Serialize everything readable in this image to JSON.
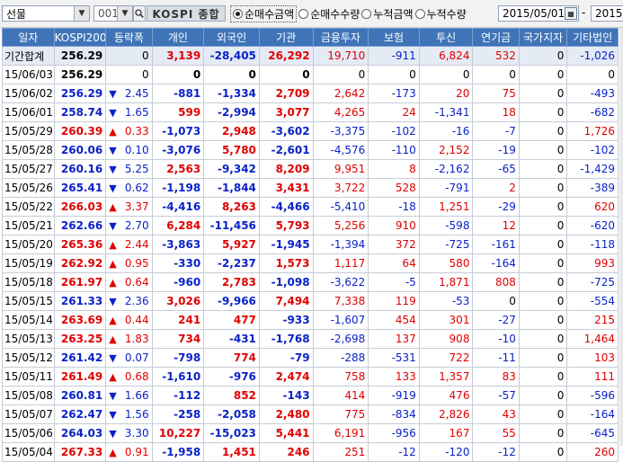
{
  "toolbar": {
    "market_select": "선물",
    "code_value": "001",
    "code_name": "KOSPI 종합",
    "radios": [
      {
        "label": "순매수금액",
        "selected": true
      },
      {
        "label": "순매수수량",
        "selected": false
      },
      {
        "label": "누적금액",
        "selected": false
      },
      {
        "label": "누적수량",
        "selected": false
      }
    ],
    "start_date": "2015/05/01",
    "separator": "-",
    "end_date": "2015/"
  },
  "columns": [
    "일자",
    "KOSPI200",
    "등락폭",
    "개인",
    "외국인",
    "기관",
    "금융투자",
    "보험",
    "투신",
    "연기금",
    "국가지자",
    "기타법인"
  ],
  "rows": [
    {
      "date": "기간합계",
      "kospi": "256.29",
      "dir": "",
      "chg": "0",
      "p": "3,139",
      "f": "-28,405",
      "i": "26,292",
      "fin": "19,710",
      "ins": "-911",
      "inv": "6,824",
      "pen": "532",
      "gov": "0",
      "etc": "-1,026"
    },
    {
      "date": "15/06/03",
      "kospi": "256.29",
      "dir": "",
      "chg": "0",
      "p": "0",
      "f": "0",
      "i": "0",
      "fin": "0",
      "ins": "0",
      "inv": "0",
      "pen": "0",
      "gov": "0",
      "etc": "0"
    },
    {
      "date": "15/06/02",
      "kospi": "256.29",
      "dir": "down",
      "chg": "2.45",
      "p": "-881",
      "f": "-1,334",
      "i": "2,709",
      "fin": "2,642",
      "ins": "-173",
      "inv": "20",
      "pen": "75",
      "gov": "0",
      "etc": "-493"
    },
    {
      "date": "15/06/01",
      "kospi": "258.74",
      "dir": "down",
      "chg": "1.65",
      "p": "599",
      "f": "-2,994",
      "i": "3,077",
      "fin": "4,265",
      "ins": "24",
      "inv": "-1,341",
      "pen": "18",
      "gov": "0",
      "etc": "-682"
    },
    {
      "date": "15/05/29",
      "kospi": "260.39",
      "dir": "up",
      "chg": "0.33",
      "p": "-1,073",
      "f": "2,948",
      "i": "-3,602",
      "fin": "-3,375",
      "ins": "-102",
      "inv": "-16",
      "pen": "-7",
      "gov": "0",
      "etc": "1,726"
    },
    {
      "date": "15/05/28",
      "kospi": "260.06",
      "dir": "down",
      "chg": "0.10",
      "p": "-3,076",
      "f": "5,780",
      "i": "-2,601",
      "fin": "-4,576",
      "ins": "-110",
      "inv": "2,152",
      "pen": "-19",
      "gov": "0",
      "etc": "-102"
    },
    {
      "date": "15/05/27",
      "kospi": "260.16",
      "dir": "down",
      "chg": "5.25",
      "p": "2,563",
      "f": "-9,342",
      "i": "8,209",
      "fin": "9,951",
      "ins": "8",
      "inv": "-2,162",
      "pen": "-65",
      "gov": "0",
      "etc": "-1,429"
    },
    {
      "date": "15/05/26",
      "kospi": "265.41",
      "dir": "down",
      "chg": "0.62",
      "p": "-1,198",
      "f": "-1,844",
      "i": "3,431",
      "fin": "3,722",
      "ins": "528",
      "inv": "-791",
      "pen": "2",
      "gov": "0",
      "etc": "-389"
    },
    {
      "date": "15/05/22",
      "kospi": "266.03",
      "dir": "up",
      "chg": "3.37",
      "p": "-4,416",
      "f": "8,263",
      "i": "-4,466",
      "fin": "-5,410",
      "ins": "-18",
      "inv": "1,251",
      "pen": "-29",
      "gov": "0",
      "etc": "620"
    },
    {
      "date": "15/05/21",
      "kospi": "262.66",
      "dir": "down",
      "chg": "2.70",
      "p": "6,284",
      "f": "-11,456",
      "i": "5,793",
      "fin": "5,256",
      "ins": "910",
      "inv": "-598",
      "pen": "12",
      "gov": "0",
      "etc": "-620"
    },
    {
      "date": "15/05/20",
      "kospi": "265.36",
      "dir": "up",
      "chg": "2.44",
      "p": "-3,863",
      "f": "5,927",
      "i": "-1,945",
      "fin": "-1,394",
      "ins": "372",
      "inv": "-725",
      "pen": "-161",
      "gov": "0",
      "etc": "-118"
    },
    {
      "date": "15/05/19",
      "kospi": "262.92",
      "dir": "up",
      "chg": "0.95",
      "p": "-330",
      "f": "-2,237",
      "i": "1,573",
      "fin": "1,117",
      "ins": "64",
      "inv": "580",
      "pen": "-164",
      "gov": "0",
      "etc": "993"
    },
    {
      "date": "15/05/18",
      "kospi": "261.97",
      "dir": "up",
      "chg": "0.64",
      "p": "-960",
      "f": "2,783",
      "i": "-1,098",
      "fin": "-3,622",
      "ins": "-5",
      "inv": "1,871",
      "pen": "808",
      "gov": "0",
      "etc": "-725"
    },
    {
      "date": "15/05/15",
      "kospi": "261.33",
      "dir": "down",
      "chg": "2.36",
      "p": "3,026",
      "f": "-9,966",
      "i": "7,494",
      "fin": "7,338",
      "ins": "119",
      "inv": "-53",
      "pen": "0",
      "gov": "0",
      "etc": "-554"
    },
    {
      "date": "15/05/14",
      "kospi": "263.69",
      "dir": "up",
      "chg": "0.44",
      "p": "241",
      "f": "477",
      "i": "-933",
      "fin": "-1,607",
      "ins": "454",
      "inv": "301",
      "pen": "-27",
      "gov": "0",
      "etc": "215"
    },
    {
      "date": "15/05/13",
      "kospi": "263.25",
      "dir": "up",
      "chg": "1.83",
      "p": "734",
      "f": "-431",
      "i": "-1,768",
      "fin": "-2,698",
      "ins": "137",
      "inv": "908",
      "pen": "-10",
      "gov": "0",
      "etc": "1,464"
    },
    {
      "date": "15/05/12",
      "kospi": "261.42",
      "dir": "down",
      "chg": "0.07",
      "p": "-798",
      "f": "774",
      "i": "-79",
      "fin": "-288",
      "ins": "-531",
      "inv": "722",
      "pen": "-11",
      "gov": "0",
      "etc": "103"
    },
    {
      "date": "15/05/11",
      "kospi": "261.49",
      "dir": "up",
      "chg": "0.68",
      "p": "-1,610",
      "f": "-976",
      "i": "2,474",
      "fin": "758",
      "ins": "133",
      "inv": "1,357",
      "pen": "83",
      "gov": "0",
      "etc": "111"
    },
    {
      "date": "15/05/08",
      "kospi": "260.81",
      "dir": "down",
      "chg": "1.66",
      "p": "-112",
      "f": "852",
      "i": "-143",
      "fin": "414",
      "ins": "-919",
      "inv": "476",
      "pen": "-57",
      "gov": "0",
      "etc": "-596"
    },
    {
      "date": "15/05/07",
      "kospi": "262.47",
      "dir": "down",
      "chg": "1.56",
      "p": "-258",
      "f": "-2,058",
      "i": "2,480",
      "fin": "775",
      "ins": "-834",
      "inv": "2,826",
      "pen": "43",
      "gov": "0",
      "etc": "-164"
    },
    {
      "date": "15/05/06",
      "kospi": "264.03",
      "dir": "down",
      "chg": "3.30",
      "p": "10,227",
      "f": "-15,023",
      "i": "5,441",
      "fin": "6,191",
      "ins": "-956",
      "inv": "167",
      "pen": "55",
      "gov": "0",
      "etc": "-645"
    },
    {
      "date": "15/05/04",
      "kospi": "267.33",
      "dir": "up",
      "chg": "0.91",
      "p": "-1,958",
      "f": "1,451",
      "i": "246",
      "fin": "251",
      "ins": "-12",
      "inv": "-120",
      "pen": "-12",
      "gov": "0",
      "etc": "260"
    }
  ]
}
